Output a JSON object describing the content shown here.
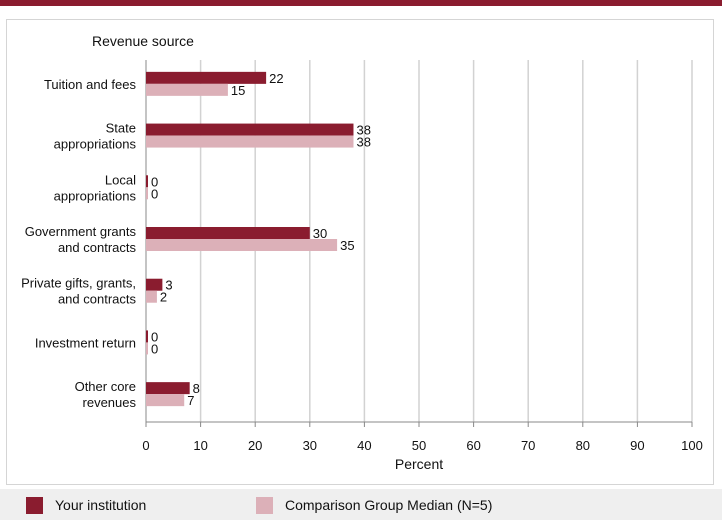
{
  "chart_data": {
    "type": "bar",
    "orientation": "horizontal",
    "title": "Revenue source",
    "xlabel": "Percent",
    "xlim": [
      0,
      100
    ],
    "xticks": [
      0,
      10,
      20,
      30,
      40,
      50,
      60,
      70,
      80,
      90,
      100
    ],
    "grid": true,
    "categories": [
      [
        "Tuition and fees"
      ],
      [
        "State",
        "appropriations"
      ],
      [
        "Local",
        "appropriations"
      ],
      [
        "Government grants",
        "and contracts"
      ],
      [
        "Private gifts, grants,",
        "and contracts"
      ],
      [
        "Investment return"
      ],
      [
        "Other core",
        "revenues"
      ]
    ],
    "series": [
      {
        "name": "Your institution",
        "color": "#8a1c2f",
        "values": [
          22,
          38,
          0,
          30,
          3,
          0,
          8
        ]
      },
      {
        "name": "Comparison Group Median (N=5)",
        "color": "#dcb0b8",
        "values": [
          15,
          38,
          0,
          35,
          2,
          0,
          7
        ]
      }
    ],
    "legend_position": "bottom"
  }
}
